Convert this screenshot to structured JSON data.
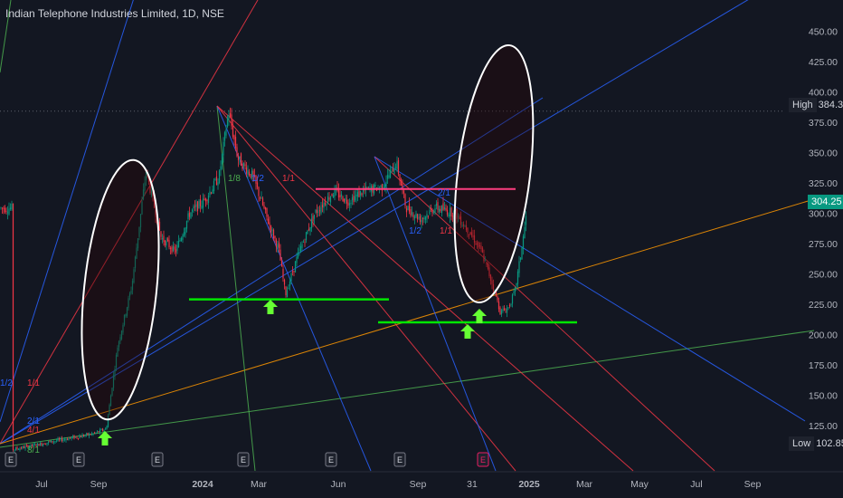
{
  "header": {
    "title": "Indian Telephone Industries Limited, 1D, NSE"
  },
  "price_tags": {
    "high_label": "High",
    "high_value": "384.30",
    "last_value": "304.25",
    "low_label": "Low",
    "low_value": "102.85"
  },
  "colors": {
    "background": "#131722",
    "up": "#089981",
    "down": "#f23645",
    "fan_blue": "#2962ff",
    "fan_red": "#f23645",
    "fan_green": "#4caf50",
    "fan_orange": "#ff9800",
    "support": "#00e600",
    "resistance": "#ff3d7f",
    "arrow": "#66ff33",
    "ellipse": "#ffffff"
  },
  "chart_data": {
    "type": "candlestick",
    "title": "Indian Telephone Industries Limited, 1D, NSE",
    "y_axis": {
      "ticks": [
        "125.00",
        "150.00",
        "175.00",
        "200.00",
        "225.00",
        "250.00",
        "275.00",
        "300.00",
        "325.00",
        "350.00",
        "375.00",
        "400.00",
        "425.00",
        "450.00"
      ],
      "ylim": [
        92,
        464
      ]
    },
    "x_axis": {
      "ticks": [
        "Jul",
        "Sep",
        "2024",
        "Mar",
        "Jun",
        "Sep",
        "31",
        "2025",
        "Mar",
        "May",
        "Jul",
        "Sep"
      ]
    },
    "price_path": [
      {
        "date": "2023-06-01",
        "price": 105
      },
      {
        "date": "2023-07-15",
        "price": 112
      },
      {
        "date": "2023-08-25",
        "price": 118
      },
      {
        "date": "2023-09-08",
        "price": 122
      },
      {
        "date": "2023-09-20",
        "price": 190
      },
      {
        "date": "2023-10-05",
        "price": 240
      },
      {
        "date": "2023-10-20",
        "price": 335
      },
      {
        "date": "2023-11-05",
        "price": 280
      },
      {
        "date": "2023-11-20",
        "price": 268
      },
      {
        "date": "2023-12-05",
        "price": 300
      },
      {
        "date": "2023-12-20",
        "price": 310
      },
      {
        "date": "2024-01-05",
        "price": 330
      },
      {
        "date": "2024-01-15",
        "price": 384.3
      },
      {
        "date": "2024-01-25",
        "price": 345
      },
      {
        "date": "2024-02-10",
        "price": 330
      },
      {
        "date": "2024-02-25",
        "price": 295
      },
      {
        "date": "2024-03-08",
        "price": 270
      },
      {
        "date": "2024-03-15",
        "price": 233
      },
      {
        "date": "2024-03-28",
        "price": 265
      },
      {
        "date": "2024-04-15",
        "price": 300
      },
      {
        "date": "2024-05-05",
        "price": 318
      },
      {
        "date": "2024-05-20",
        "price": 310
      },
      {
        "date": "2024-06-05",
        "price": 318
      },
      {
        "date": "2024-06-25",
        "price": 322
      },
      {
        "date": "2024-07-10",
        "price": 342
      },
      {
        "date": "2024-07-20",
        "price": 305
      },
      {
        "date": "2024-08-05",
        "price": 295
      },
      {
        "date": "2024-08-20",
        "price": 305
      },
      {
        "date": "2024-09-10",
        "price": 300
      },
      {
        "date": "2024-09-25",
        "price": 285
      },
      {
        "date": "2024-10-08",
        "price": 268
      },
      {
        "date": "2024-10-20",
        "price": 240
      },
      {
        "date": "2024-10-28",
        "price": 218
      },
      {
        "date": "2024-11-05",
        "price": 222
      },
      {
        "date": "2024-11-12",
        "price": 235
      },
      {
        "date": "2024-11-20",
        "price": 275
      },
      {
        "date": "2024-11-25",
        "price": 304.25
      }
    ],
    "high": 384.3,
    "low": 102.85,
    "last": 304.25,
    "annotations": {
      "fan_labels": [
        "1/2",
        "1/1",
        "2/1",
        "4/1",
        "8/1",
        "1/8",
        "1/2",
        "1/1",
        "1/2",
        "1/1",
        "2/1"
      ],
      "event_markers": [
        "E",
        "E",
        "E",
        "E",
        "E",
        "E",
        "E"
      ],
      "support_levels": [
        229,
        210
      ],
      "resistance_level": 320
    }
  }
}
